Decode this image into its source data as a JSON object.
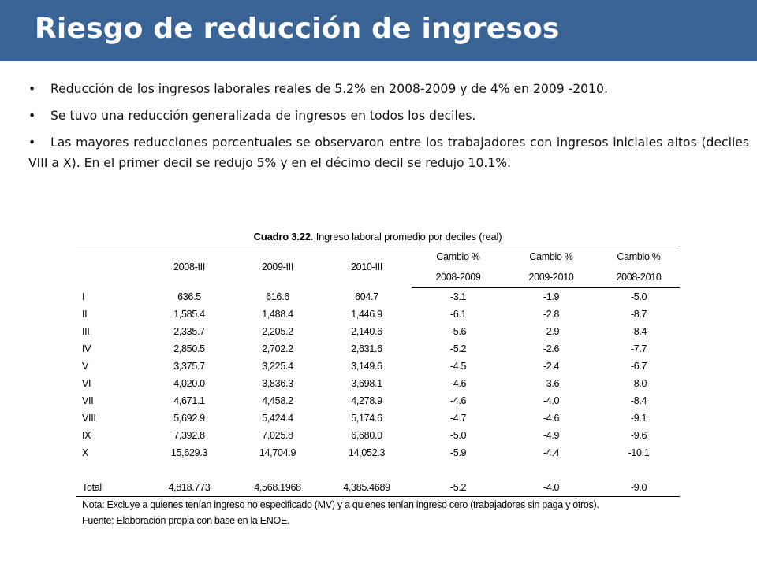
{
  "slide": {
    "title": "Riesgo de reducción de ingresos",
    "colors": {
      "title_bar": "#3a6396",
      "title_text": "#ffffff"
    }
  },
  "bullets": [
    {
      "symbol": "•",
      "text": "Reducción de los ingresos laborales reales de 5.2% en 2008-2009 y de 4% en 2009 -2010."
    },
    {
      "symbol": "•",
      "text": "Se tuvo una reducción generalizada de ingresos en todos los deciles."
    },
    {
      "symbol": "•",
      "text": "Las mayores reducciones porcentuales se observaron entre los trabajadores con ingresos iniciales altos (deciles VIII a X). En el primer decil se redujo 5% y en el décimo decil se redujo 10.1%."
    }
  ],
  "table": {
    "caption_bold": "Cuadro 3.22",
    "caption_rest": ". Ingreso laboral promedio por deciles (real)",
    "headers": {
      "c1": "2008-III",
      "c2": "2009-III",
      "c3": "2010-III",
      "c4a": "Cambio %",
      "c4b": "2008-2009",
      "c5a": "Cambio %",
      "c5b": "2009-2010",
      "c6a": "Cambio %",
      "c6b": "2008-2010"
    },
    "rows": [
      {
        "label": "I",
        "v2008": "636.5",
        "v2009": "616.6",
        "v2010": "604.7",
        "c0809": "-3.1",
        "c0910": "-1.9",
        "c0810": "-5.0"
      },
      {
        "label": "II",
        "v2008": "1,585.4",
        "v2009": "1,488.4",
        "v2010": "1,446.9",
        "c0809": "-6.1",
        "c0910": "-2.8",
        "c0810": "-8.7"
      },
      {
        "label": "III",
        "v2008": "2,335.7",
        "v2009": "2,205.2",
        "v2010": "2,140.6",
        "c0809": "-5.6",
        "c0910": "-2.9",
        "c0810": "-8.4"
      },
      {
        "label": "IV",
        "v2008": "2,850.5",
        "v2009": "2,702.2",
        "v2010": "2,631.6",
        "c0809": "-5.2",
        "c0910": "-2.6",
        "c0810": "-7.7"
      },
      {
        "label": "V",
        "v2008": "3,375.7",
        "v2009": "3,225.4",
        "v2010": "3,149.6",
        "c0809": "-4.5",
        "c0910": "-2.4",
        "c0810": "-6.7"
      },
      {
        "label": "VI",
        "v2008": "4,020.0",
        "v2009": "3,836.3",
        "v2010": "3,698.1",
        "c0809": "-4.6",
        "c0910": "-3.6",
        "c0810": "-8.0"
      },
      {
        "label": "VII",
        "v2008": "4,671.1",
        "v2009": "4,458.2",
        "v2010": "4,278.9",
        "c0809": "-4.6",
        "c0910": "-4.0",
        "c0810": "-8.4"
      },
      {
        "label": "VIII",
        "v2008": "5,692.9",
        "v2009": "5,424.4",
        "v2010": "5,174.6",
        "c0809": "-4.7",
        "c0910": "-4.6",
        "c0810": "-9.1"
      },
      {
        "label": "IX",
        "v2008": "7,392.8",
        "v2009": "7,025.8",
        "v2010": "6,680.0",
        "c0809": "-5.0",
        "c0910": "-4.9",
        "c0810": "-9.6"
      },
      {
        "label": "X",
        "v2008": "15,629.3",
        "v2009": "14,704.9",
        "v2010": "14,052.3",
        "c0809": "-5.9",
        "c0910": "-4.4",
        "c0810": "-10.1"
      }
    ],
    "total": {
      "label": "Total",
      "v2008": "4,818.773",
      "v2009": "4,568.1968",
      "v2010": "4,385.4689",
      "c0809": "-5.2",
      "c0910": "-4.0",
      "c0810": "-9.0"
    },
    "note": "Nota: Excluye a quienes tenían ingreso no especificado (MV) y a quienes tenían ingreso cero (trabajadores sin paga y otros).",
    "source": "Fuente: Elaboración propia con base en la ENOE."
  }
}
